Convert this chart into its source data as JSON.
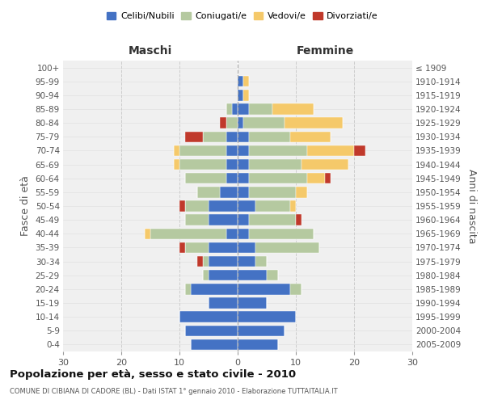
{
  "age_groups": [
    "0-4",
    "5-9",
    "10-14",
    "15-19",
    "20-24",
    "25-29",
    "30-34",
    "35-39",
    "40-44",
    "45-49",
    "50-54",
    "55-59",
    "60-64",
    "65-69",
    "70-74",
    "75-79",
    "80-84",
    "85-89",
    "90-94",
    "95-99",
    "100+"
  ],
  "birth_years": [
    "2005-2009",
    "2000-2004",
    "1995-1999",
    "1990-1994",
    "1985-1989",
    "1980-1984",
    "1975-1979",
    "1970-1974",
    "1965-1969",
    "1960-1964",
    "1955-1959",
    "1950-1954",
    "1945-1949",
    "1940-1944",
    "1935-1939",
    "1930-1934",
    "1925-1929",
    "1920-1924",
    "1915-1919",
    "1910-1914",
    "≤ 1909"
  ],
  "colors": {
    "celibi": "#4472C4",
    "coniugati": "#b5c9a0",
    "vedovi": "#f5c96a",
    "divorziati": "#c0392b"
  },
  "maschi": {
    "celibi": [
      8,
      9,
      10,
      5,
      8,
      5,
      5,
      5,
      2,
      5,
      5,
      3,
      2,
      2,
      2,
      2,
      0,
      1,
      0,
      0,
      0
    ],
    "coniugati": [
      0,
      0,
      0,
      0,
      1,
      1,
      1,
      4,
      13,
      4,
      4,
      4,
      7,
      8,
      8,
      4,
      2,
      1,
      0,
      0,
      0
    ],
    "vedovi": [
      0,
      0,
      0,
      0,
      0,
      0,
      0,
      0,
      1,
      0,
      0,
      0,
      0,
      1,
      1,
      0,
      0,
      0,
      0,
      0,
      0
    ],
    "divorziati": [
      0,
      0,
      0,
      0,
      0,
      0,
      1,
      1,
      0,
      0,
      1,
      0,
      0,
      0,
      0,
      3,
      1,
      0,
      0,
      0,
      0
    ]
  },
  "femmine": {
    "celibi": [
      7,
      8,
      10,
      5,
      9,
      5,
      3,
      3,
      2,
      2,
      3,
      2,
      2,
      2,
      2,
      2,
      1,
      2,
      1,
      1,
      0
    ],
    "coniugati": [
      0,
      0,
      0,
      0,
      2,
      2,
      2,
      11,
      11,
      8,
      6,
      8,
      10,
      9,
      10,
      7,
      7,
      4,
      0,
      0,
      0
    ],
    "vedovi": [
      0,
      0,
      0,
      0,
      0,
      0,
      0,
      0,
      0,
      0,
      1,
      2,
      3,
      8,
      8,
      7,
      10,
      7,
      1,
      1,
      0
    ],
    "divorziati": [
      0,
      0,
      0,
      0,
      0,
      0,
      0,
      0,
      0,
      1,
      0,
      0,
      1,
      0,
      2,
      0,
      0,
      0,
      0,
      0,
      0
    ]
  },
  "xlim": 30,
  "title": "Popolazione per età, sesso e stato civile - 2010",
  "subtitle": "COMUNE DI CIBIANA DI CADORE (BL) - Dati ISTAT 1° gennaio 2010 - Elaborazione TUTTAITALIA.IT",
  "xlabel_left": "Maschi",
  "xlabel_right": "Femmine",
  "ylabel_left": "Fasce di età",
  "ylabel_right": "Anni di nascita",
  "bg_color": "#f0f0f0",
  "legend_labels": [
    "Celibi/Nubili",
    "Coniugati/e",
    "Vedovi/e",
    "Divorziati/e"
  ]
}
